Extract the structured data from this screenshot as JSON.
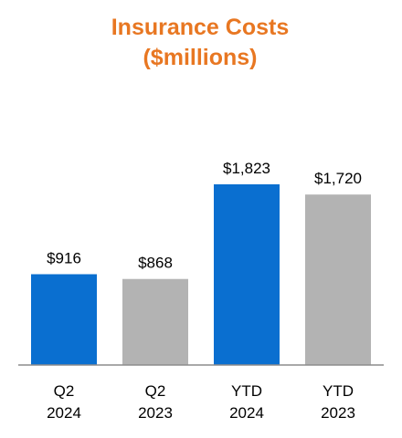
{
  "chart_data": {
    "type": "bar",
    "title_line1": "Insurance Costs",
    "title_line2": "($millions)",
    "categories": [
      {
        "line1": "Q2",
        "line2": "2024"
      },
      {
        "line1": "Q2",
        "line2": "2023"
      },
      {
        "line1": "YTD",
        "line2": "2024"
      },
      {
        "line1": "YTD",
        "line2": "2023"
      }
    ],
    "values": [
      916,
      868,
      1823,
      1720
    ],
    "value_labels": [
      "$916",
      "$868",
      "$1,823",
      "$1,720"
    ],
    "bar_colors": [
      "#0a6fd0",
      "#b3b3b3",
      "#0a6fd0",
      "#b3b3b3"
    ],
    "title_color": "#e87722",
    "axis_color": "#8c8c8c",
    "ylim": [
      0,
      1823
    ],
    "grid": false,
    "legend": "none"
  }
}
